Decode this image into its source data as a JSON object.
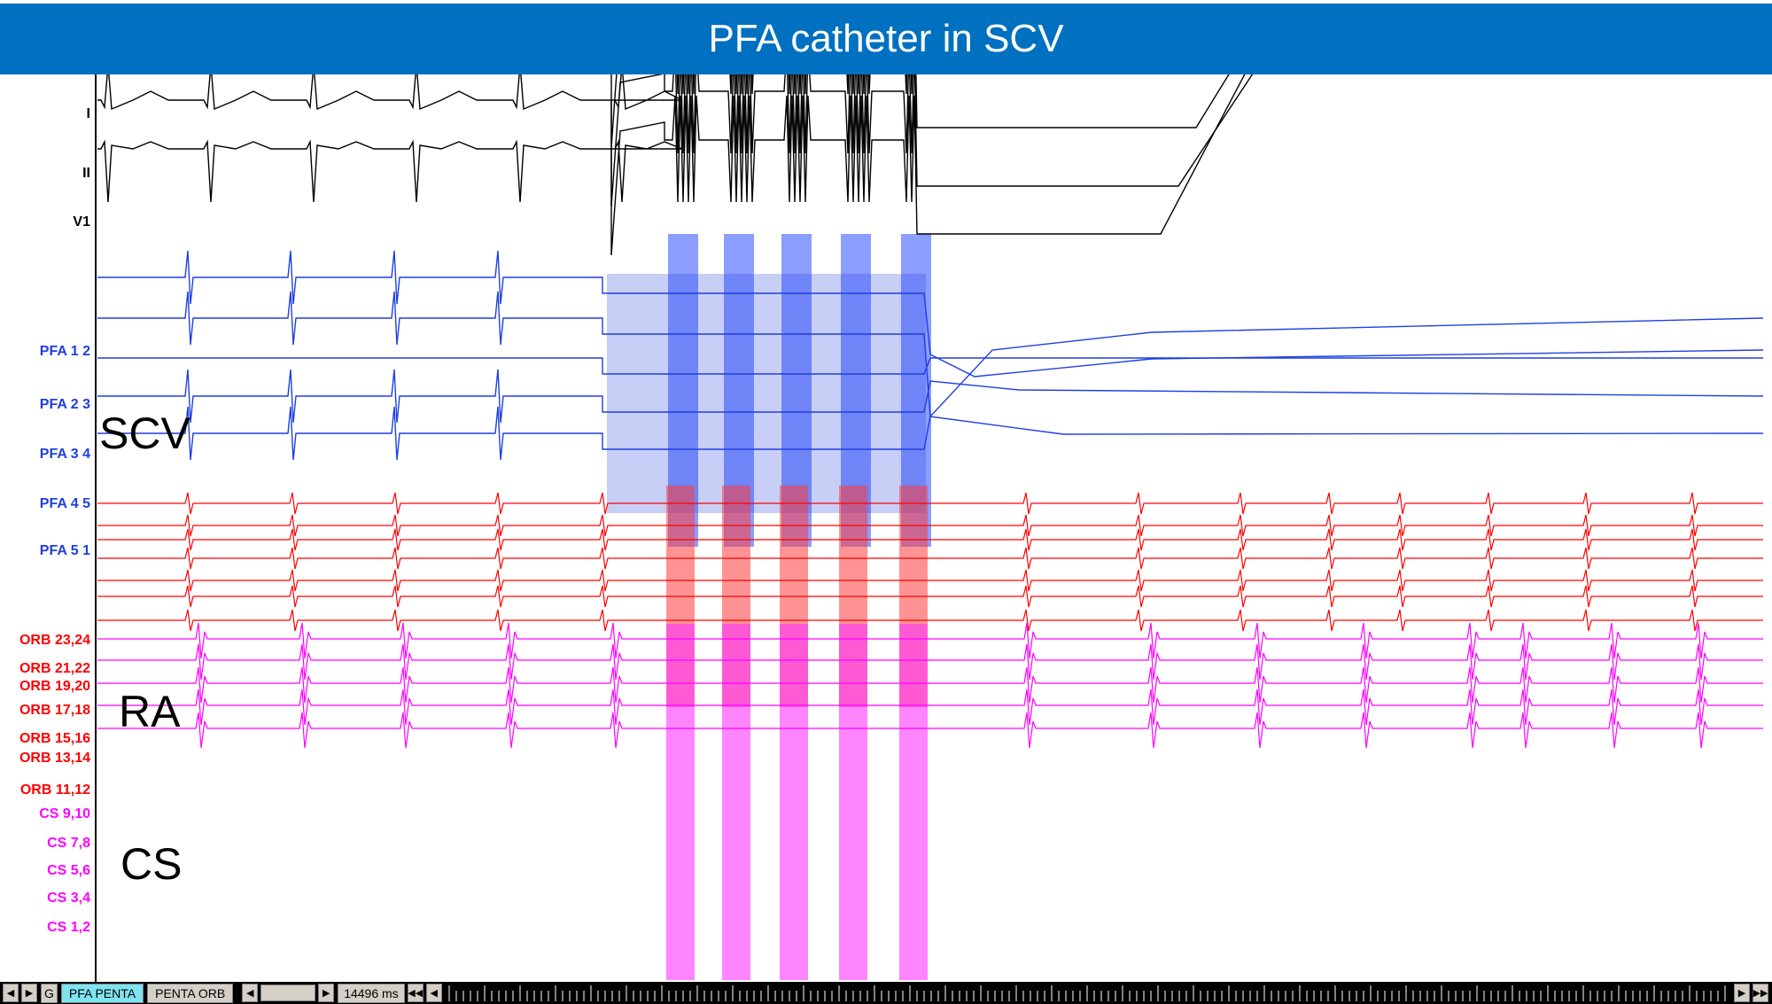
{
  "title": "PFA catheter in SCV",
  "groups": {
    "ecg": {
      "color": "#000000",
      "channels": [
        "I",
        "II",
        "V1"
      ]
    },
    "pfa": {
      "color": "#1f3fe0",
      "channels": [
        "PFA 1 2",
        "PFA 2 3",
        "PFA 3 4",
        "PFA 4 5",
        "PFA 5 1"
      ],
      "region_label": "SCV"
    },
    "orb": {
      "color": "#ff0000",
      "channels": [
        "ORB 23,24",
        "ORB 21,22",
        "ORB 19,20",
        "ORB 17,18",
        "ORB 15,16",
        "ORB 13,14",
        "ORB 11,12"
      ],
      "region_label": "RA"
    },
    "cs": {
      "color": "#ff00ff",
      "channels": [
        "CS 9,10",
        "CS 7,8",
        "CS 5,6",
        "CS 3,4",
        "CS 1,2"
      ],
      "region_label": "CS"
    }
  },
  "bottom_bar": {
    "tabs": [
      {
        "label": "PFA PENTA",
        "active": true
      },
      {
        "label": "PENTA ORB",
        "active": false
      }
    ],
    "partial_tab": "G",
    "sweep_readout": "14496 ms"
  }
}
